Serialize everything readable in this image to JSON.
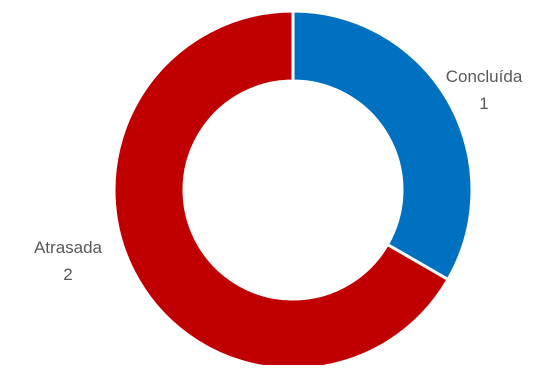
{
  "chart_data": {
    "type": "pie",
    "variant": "doughnut",
    "title": "",
    "slices": [
      {
        "label": "Concluída",
        "value": 1,
        "color": "#0070C0"
      },
      {
        "label": "Atrasada",
        "value": 2,
        "color": "#C00000"
      }
    ],
    "legend": "none",
    "data_labels": "category and value, outside"
  }
}
